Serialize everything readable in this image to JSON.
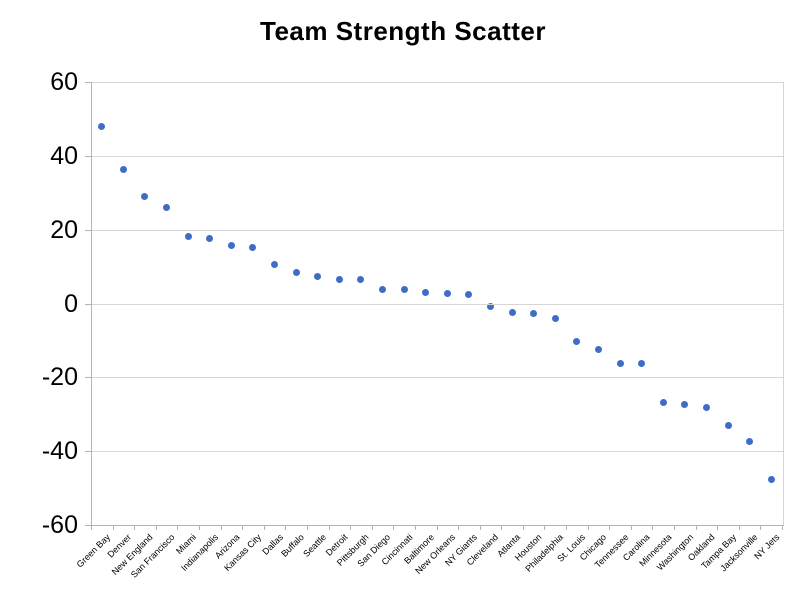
{
  "chart_data": {
    "type": "scatter",
    "title": "Team Strength Scatter",
    "categories": [
      "Green Bay",
      "Denver",
      "New England",
      "San Francisco",
      "Miami",
      "Indianapolis",
      "Arizona",
      "Kansas City",
      "Dallas",
      "Buffalo",
      "Seattle",
      "Detroit",
      "Pittsburgh",
      "San Diego",
      "Cincinnati",
      "Baltimore",
      "New Orleans",
      "NY Giants",
      "Cleveland",
      "Atlanta",
      "Houston",
      "Philadelphia",
      "St. Louis",
      "Chicago",
      "Tennessee",
      "Carolina",
      "Minnesota",
      "Washington",
      "Oakland",
      "Tampa Bay",
      "Jacksonville",
      "NY Jets"
    ],
    "values": [
      48.0,
      36.3,
      29.0,
      26.0,
      18.2,
      17.5,
      15.8,
      15.3,
      10.6,
      8.3,
      7.2,
      6.5,
      6.4,
      3.8,
      3.7,
      3.0,
      2.7,
      2.5,
      -0.7,
      -2.5,
      -2.6,
      -4.1,
      -10.3,
      -12.5,
      -16.3,
      -16.3,
      -26.7,
      -27.3,
      -28.3,
      -33.0,
      -37.4,
      -47.6
    ],
    "xlabel": "",
    "ylabel": "",
    "ylim": [
      -60,
      60
    ],
    "yticks": [
      60,
      40,
      20,
      0,
      -20,
      -40,
      -60
    ],
    "grid": true,
    "legend": false,
    "colors": {
      "point": "#3e6dc6",
      "grid": "#d6d6d6",
      "axis": "#b3b3b3",
      "text": "#000000",
      "background": "#ffffff"
    }
  }
}
